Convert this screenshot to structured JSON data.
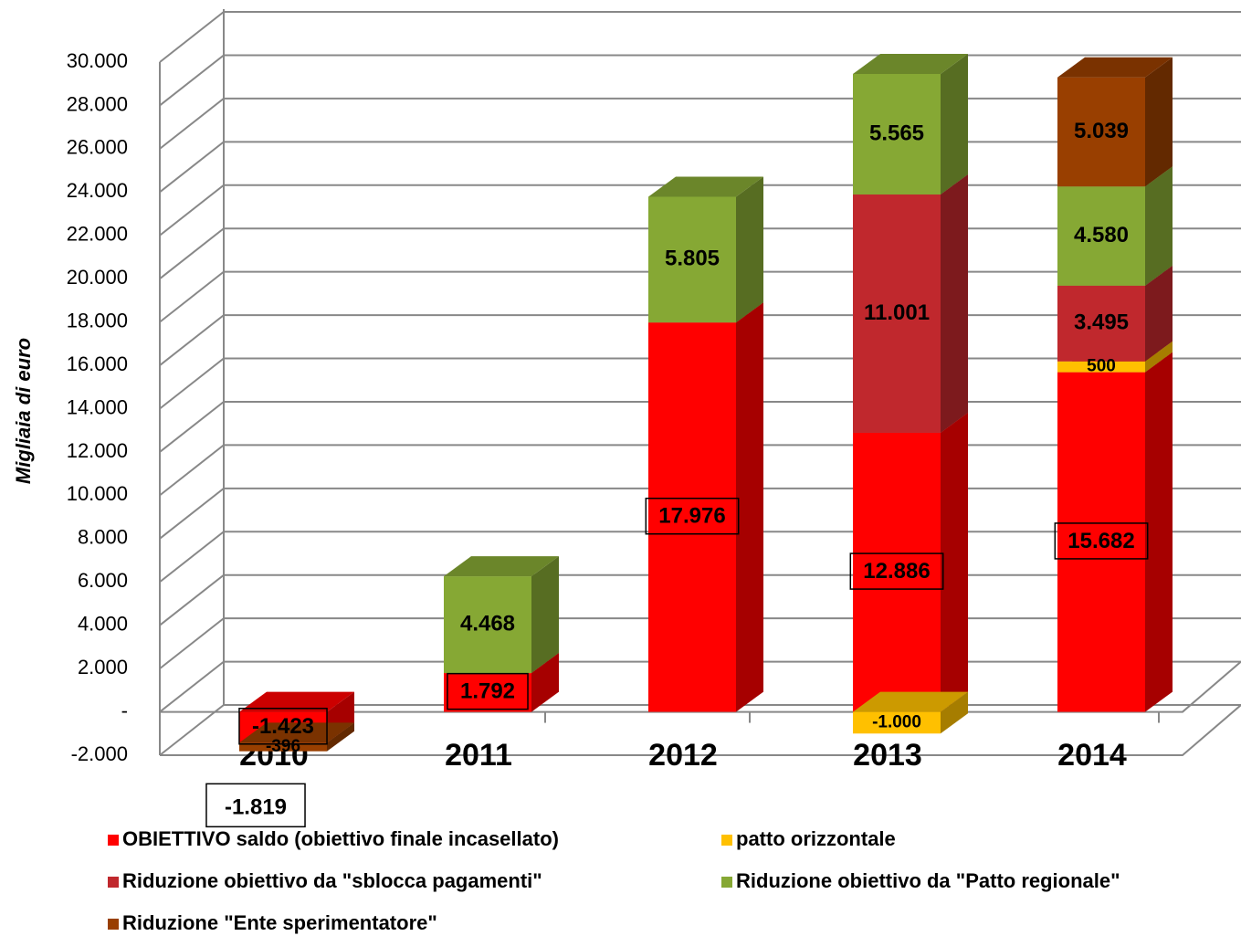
{
  "chart_data": {
    "type": "bar3d_stacked",
    "y_axis_label": "Migliaia di euro",
    "categories": [
      "2010",
      "2011",
      "2012",
      "2013",
      "2014"
    ],
    "series": [
      {
        "name": "OBIETTIVO saldo (obiettivo finale incasellato)",
        "color": "#ff0000",
        "label_box": true,
        "values": [
          -1423,
          1792,
          17976,
          12886,
          15682
        ],
        "value_labels": [
          "-1.423",
          "1.792",
          "17.976",
          "12.886",
          "15.682"
        ]
      },
      {
        "name": "patto orizzontale",
        "color": "#ffc000",
        "values": [
          null,
          null,
          null,
          -1000,
          500
        ],
        "value_labels": [
          null,
          null,
          null,
          "-1.000",
          "500"
        ]
      },
      {
        "name": "Riduzione obiettivo da \"sblocca pagamenti\"",
        "color": "#c0282d",
        "values": [
          null,
          null,
          null,
          11001,
          3495
        ],
        "value_labels": [
          null,
          null,
          null,
          "11.001",
          "3.495"
        ]
      },
      {
        "name": "Riduzione obiettivo da \"Patto regionale\"",
        "color": "#86a834",
        "values": [
          null,
          4468,
          5805,
          5565,
          4580
        ],
        "value_labels": [
          null,
          "4.468",
          "5.805",
          "5.565",
          "4.580"
        ]
      },
      {
        "name": "Riduzione \"Ente sperimentatore\"",
        "color": "#993f00",
        "values": [
          -396,
          null,
          null,
          null,
          5039
        ],
        "value_labels": [
          "-396",
          null,
          null,
          null,
          "5.039"
        ]
      }
    ],
    "annotation": "-1.819",
    "ylim": [
      -2000,
      30000
    ],
    "yticks": [
      {
        "value": -2000,
        "label": "-2.000"
      },
      {
        "value": 0,
        "label": "-"
      },
      {
        "value": 2000,
        "label": "2.000"
      },
      {
        "value": 4000,
        "label": "4.000"
      },
      {
        "value": 6000,
        "label": "6.000"
      },
      {
        "value": 8000,
        "label": "8.000"
      },
      {
        "value": 10000,
        "label": "10.000"
      },
      {
        "value": 12000,
        "label": "12.000"
      },
      {
        "value": 14000,
        "label": "14.000"
      },
      {
        "value": 16000,
        "label": "16.000"
      },
      {
        "value": 18000,
        "label": "18.000"
      },
      {
        "value": 20000,
        "label": "20.000"
      },
      {
        "value": 22000,
        "label": "22.000"
      },
      {
        "value": 24000,
        "label": "24.000"
      },
      {
        "value": 26000,
        "label": "26.000"
      },
      {
        "value": 28000,
        "label": "28.000"
      },
      {
        "value": 30000,
        "label": "30.000"
      }
    ],
    "grid": true
  }
}
